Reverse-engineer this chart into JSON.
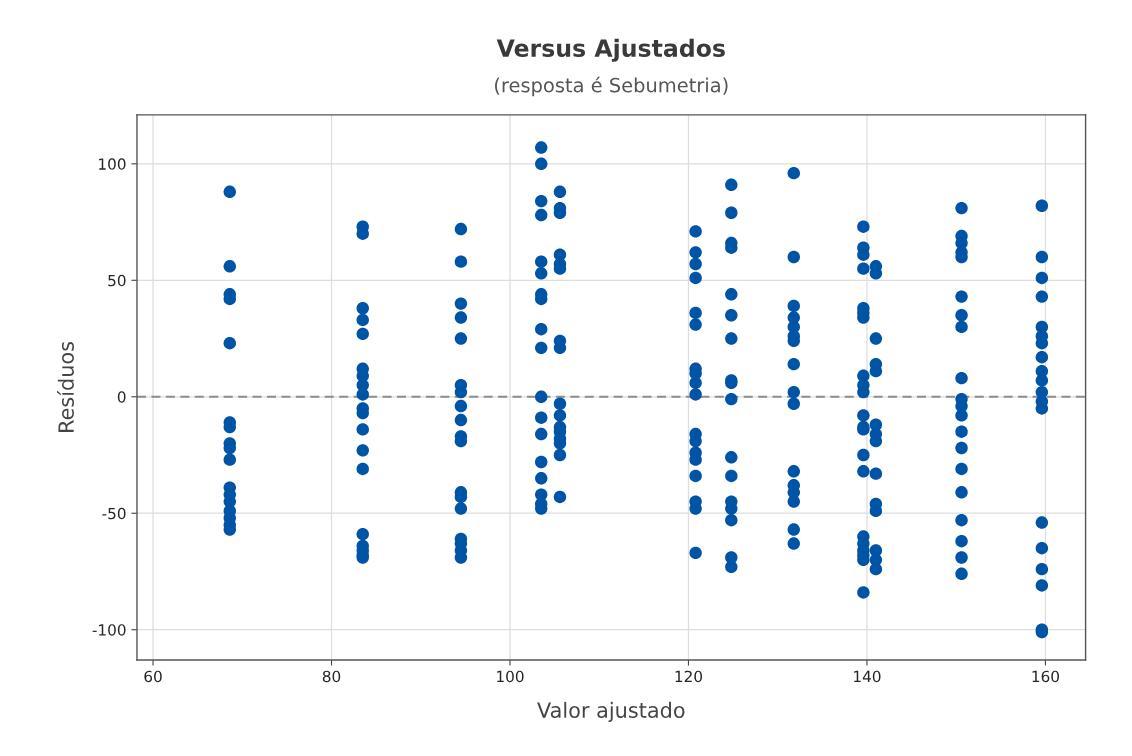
{
  "chart_data": {
    "type": "scatter",
    "title": "Versus Ajustados",
    "subtitle": "(resposta é Sebumetria)",
    "xlabel": "Valor ajustado",
    "ylabel": "Resíduos",
    "xlim": [
      58.2,
      164.5
    ],
    "ylim": [
      -113,
      121
    ],
    "xticks": [
      60,
      80,
      100,
      120,
      140,
      160
    ],
    "yticks": [
      -100,
      -50,
      0,
      50,
      100
    ],
    "grid": true,
    "marker": "circle",
    "ref_lines": [
      {
        "axis": "y",
        "value": 0,
        "color": "#8c8c8c",
        "line_style": "dashed"
      }
    ],
    "series": [
      {
        "color": "#0054a6",
        "x": [
          68.6,
          68.6,
          68.6,
          68.6,
          68.6,
          68.6,
          68.6,
          68.6,
          68.6,
          68.6,
          68.6,
          68.6,
          68.6,
          68.6,
          68.6,
          68.6,
          68.6,
          83.5,
          83.5,
          83.5,
          83.5,
          83.5,
          83.5,
          83.5,
          83.5,
          83.5,
          83.5,
          83.5,
          83.5,
          83.5,
          83.5,
          83.5,
          83.5,
          83.5,
          83.5,
          83.5,
          94.5,
          94.5,
          94.5,
          94.5,
          94.5,
          94.5,
          94.5,
          94.5,
          94.5,
          94.5,
          94.5,
          94.5,
          94.5,
          94.5,
          94.5,
          94.5,
          94.5,
          94.5,
          103.5,
          103.5,
          103.5,
          103.5,
          103.5,
          103.5,
          103.5,
          103.5,
          103.5,
          103.5,
          103.5,
          103.5,
          103.5,
          103.5,
          103.5,
          103.5,
          103.5,
          103.5,
          105.6,
          105.6,
          105.6,
          105.6,
          105.6,
          105.6,
          105.6,
          105.6,
          105.6,
          105.6,
          105.6,
          105.6,
          105.6,
          105.6,
          105.6,
          105.6,
          120.8,
          120.8,
          120.8,
          120.8,
          120.8,
          120.8,
          120.8,
          120.8,
          120.8,
          120.8,
          120.8,
          120.8,
          120.8,
          120.8,
          120.8,
          120.8,
          120.8,
          120.8,
          124.8,
          124.8,
          124.8,
          124.8,
          124.8,
          124.8,
          124.8,
          124.8,
          124.8,
          124.8,
          124.8,
          124.8,
          124.8,
          124.8,
          124.8,
          124.8,
          124.8,
          131.8,
          131.8,
          131.8,
          131.8,
          131.8,
          131.8,
          131.8,
          131.8,
          131.8,
          131.8,
          131.8,
          131.8,
          131.8,
          131.8,
          131.8,
          131.8,
          139.6,
          139.6,
          139.6,
          139.6,
          139.6,
          139.6,
          139.6,
          139.6,
          139.6,
          139.6,
          139.6,
          139.6,
          139.6,
          139.6,
          139.6,
          139.6,
          139.6,
          139.6,
          139.6,
          139.6,
          139.6,
          141.0,
          141.0,
          141.0,
          141.0,
          141.0,
          141.0,
          141.0,
          141.0,
          141.0,
          141.0,
          141.0,
          141.0,
          141.0,
          141.0,
          150.6,
          150.6,
          150.6,
          150.6,
          150.6,
          150.6,
          150.6,
          150.6,
          150.6,
          150.6,
          150.6,
          150.6,
          150.6,
          150.6,
          150.6,
          150.6,
          150.6,
          150.6,
          150.6,
          150.6,
          159.6,
          159.6,
          159.6,
          159.6,
          159.6,
          159.6,
          159.6,
          159.6,
          159.6,
          159.6,
          159.6,
          159.6,
          159.6,
          159.6,
          159.6,
          159.6,
          159.6,
          159.6,
          159.6
        ],
        "values": [
          88,
          56,
          44,
          42,
          23,
          -11,
          -13,
          -20,
          -22,
          -27,
          -39,
          -42,
          -45,
          -49,
          -52,
          -55,
          -57,
          73,
          70,
          38,
          33,
          27,
          12,
          9,
          5,
          1,
          -5,
          -7,
          -14,
          -23,
          -31,
          -59,
          -64,
          -66,
          -68,
          -69,
          72,
          58,
          40,
          34,
          25,
          5,
          2,
          -4,
          -10,
          -17,
          -19,
          -41,
          -43,
          -48,
          -61,
          -63,
          -66,
          -69,
          107,
          100,
          84,
          78,
          58,
          53,
          44,
          42,
          29,
          21,
          0,
          -9,
          -16,
          -28,
          -35,
          -42,
          -46,
          -48,
          88,
          81,
          79,
          61,
          57,
          55,
          24,
          21,
          -3,
          -8,
          -13,
          -15,
          -18,
          -20,
          -25,
          -43,
          71,
          62,
          57,
          51,
          36,
          31,
          12,
          10,
          6,
          1,
          -16,
          -19,
          -24,
          -27,
          -34,
          -45,
          -48,
          -67,
          91,
          79,
          66,
          64,
          44,
          35,
          25,
          7,
          6,
          -1,
          -26,
          -34,
          -45,
          -48,
          -53,
          -69,
          -73,
          96,
          60,
          39,
          34,
          30,
          26,
          24,
          14,
          2,
          -3,
          -32,
          -38,
          -41,
          -45,
          -57,
          -63,
          73,
          64,
          61,
          55,
          38,
          36,
          34,
          9,
          5,
          2,
          -8,
          -13,
          -14,
          -25,
          -32,
          -60,
          -63,
          -66,
          -68,
          -70,
          -84,
          56,
          53,
          25,
          14,
          11,
          -12,
          -16,
          -19,
          -33,
          -46,
          -49,
          -66,
          -70,
          -74,
          81,
          69,
          66,
          62,
          60,
          43,
          35,
          30,
          8,
          -1,
          -4,
          -8,
          -15,
          -22,
          -31,
          -41,
          -53,
          -62,
          -69,
          -76,
          82,
          60,
          51,
          43,
          30,
          26,
          23,
          17,
          11,
          7,
          2,
          -2,
          -5,
          -54,
          -65,
          -74,
          -81,
          -100,
          -101
        ]
      }
    ]
  }
}
